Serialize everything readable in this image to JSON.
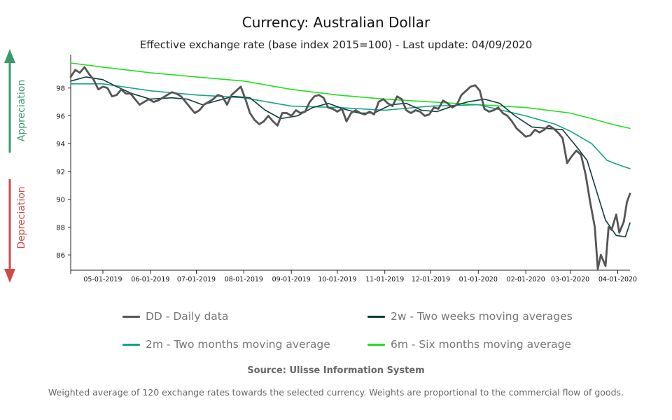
{
  "header": {
    "title": "Currency: Australian Dollar",
    "subtitle": "Effective exchange rate (base index 2015=100) - Last update: 04/09/2020"
  },
  "side": {
    "appreciation": "Appreciation",
    "depreciation": "Depreciation",
    "appreciation_color": "#3a9a6a",
    "depreciation_color": "#d04a4a"
  },
  "legend": [
    {
      "label": "DD - Daily data",
      "color": "#555555"
    },
    {
      "label": "2w - Two weeks moving averages",
      "color": "#0b3d3a"
    },
    {
      "label": "2m - Two months moving average",
      "color": "#17a38a"
    },
    {
      "label": "6m - Six months moving average",
      "color": "#22e01e"
    }
  ],
  "footer": {
    "source": "Source: Ulisse Information System",
    "note": "Weighted average of 120 exchange rates towards the selected currency. Weights are proportional to the commercial flow of goods."
  },
  "chart_data": {
    "type": "line",
    "x_ticks": [
      "05-01-2019",
      "06-01-2019",
      "07-01-2019",
      "08-01-2019",
      "09-01-2019",
      "10-01-2019",
      "11-01-2019",
      "12-01-2019",
      "01-01-2020",
      "02-01-2020",
      "03-01-2020",
      "04-01-2020"
    ],
    "y_ticks": [
      86,
      88,
      90,
      92,
      94,
      96,
      98
    ],
    "ylim": [
      84.9,
      99.9
    ],
    "xlim": [
      "2019-04-10",
      "2020-04-09"
    ],
    "series": [
      {
        "name": "DD - Daily data",
        "color": "#555555",
        "width": 2.8,
        "points": [
          [
            "2019-04-10",
            98.8
          ],
          [
            "2019-04-13",
            99.3
          ],
          [
            "2019-04-16",
            99.1
          ],
          [
            "2019-04-19",
            99.5
          ],
          [
            "2019-04-22",
            99.0
          ],
          [
            "2019-04-25",
            98.6
          ],
          [
            "2019-04-28",
            97.9
          ],
          [
            "2019-05-01",
            98.1
          ],
          [
            "2019-05-04",
            98.0
          ],
          [
            "2019-05-07",
            97.4
          ],
          [
            "2019-05-10",
            97.5
          ],
          [
            "2019-05-13",
            97.9
          ],
          [
            "2019-05-16",
            97.6
          ],
          [
            "2019-05-19",
            97.6
          ],
          [
            "2019-05-22",
            97.2
          ],
          [
            "2019-05-25",
            96.8
          ],
          [
            "2019-05-28",
            97.0
          ],
          [
            "2019-05-31",
            97.2
          ],
          [
            "2019-06-03",
            97.0
          ],
          [
            "2019-06-06",
            97.1
          ],
          [
            "2019-06-09",
            97.3
          ],
          [
            "2019-06-12",
            97.5
          ],
          [
            "2019-06-15",
            97.7
          ],
          [
            "2019-06-18",
            97.6
          ],
          [
            "2019-06-21",
            97.4
          ],
          [
            "2019-06-24",
            97.0
          ],
          [
            "2019-06-27",
            96.6
          ],
          [
            "2019-06-30",
            96.2
          ],
          [
            "2019-07-03",
            96.4
          ],
          [
            "2019-07-06",
            96.8
          ],
          [
            "2019-07-09",
            97.0
          ],
          [
            "2019-07-12",
            97.2
          ],
          [
            "2019-07-15",
            97.5
          ],
          [
            "2019-07-18",
            97.4
          ],
          [
            "2019-07-21",
            96.8
          ],
          [
            "2019-07-24",
            97.5
          ],
          [
            "2019-07-27",
            97.8
          ],
          [
            "2019-07-30",
            98.1
          ],
          [
            "2019-08-02",
            97.2
          ],
          [
            "2019-08-05",
            96.2
          ],
          [
            "2019-08-08",
            95.7
          ],
          [
            "2019-08-11",
            95.4
          ],
          [
            "2019-08-14",
            95.6
          ],
          [
            "2019-08-17",
            96.0
          ],
          [
            "2019-08-20",
            95.6
          ],
          [
            "2019-08-23",
            95.3
          ],
          [
            "2019-08-26",
            96.2
          ],
          [
            "2019-08-29",
            96.2
          ],
          [
            "2019-09-01",
            96.0
          ],
          [
            "2019-09-04",
            96.4
          ],
          [
            "2019-09-07",
            96.2
          ],
          [
            "2019-09-10",
            96.3
          ],
          [
            "2019-09-13",
            97.0
          ],
          [
            "2019-09-16",
            97.4
          ],
          [
            "2019-09-19",
            97.5
          ],
          [
            "2019-09-22",
            97.3
          ],
          [
            "2019-09-25",
            96.6
          ],
          [
            "2019-09-28",
            96.5
          ],
          [
            "2019-10-01",
            96.3
          ],
          [
            "2019-10-04",
            96.5
          ],
          [
            "2019-10-07",
            95.6
          ],
          [
            "2019-10-10",
            96.2
          ],
          [
            "2019-10-13",
            96.4
          ],
          [
            "2019-10-16",
            96.2
          ],
          [
            "2019-10-19",
            96.1
          ],
          [
            "2019-10-22",
            96.3
          ],
          [
            "2019-10-25",
            96.1
          ],
          [
            "2019-10-28",
            97.0
          ],
          [
            "2019-10-31",
            97.2
          ],
          [
            "2019-11-03",
            96.9
          ],
          [
            "2019-11-06",
            96.7
          ],
          [
            "2019-11-09",
            97.4
          ],
          [
            "2019-11-12",
            97.2
          ],
          [
            "2019-11-15",
            96.4
          ],
          [
            "2019-11-18",
            96.2
          ],
          [
            "2019-11-21",
            96.4
          ],
          [
            "2019-11-24",
            96.3
          ],
          [
            "2019-11-27",
            96.0
          ],
          [
            "2019-11-30",
            96.1
          ],
          [
            "2019-12-03",
            96.6
          ],
          [
            "2019-12-06",
            96.5
          ],
          [
            "2019-12-09",
            97.1
          ],
          [
            "2019-12-12",
            96.9
          ],
          [
            "2019-12-15",
            96.6
          ],
          [
            "2019-12-18",
            96.8
          ],
          [
            "2019-12-21",
            97.5
          ],
          [
            "2019-12-24",
            97.8
          ],
          [
            "2019-12-27",
            98.1
          ],
          [
            "2019-12-30",
            98.2
          ],
          [
            "2020-01-02",
            97.8
          ],
          [
            "2020-01-05",
            96.5
          ],
          [
            "2020-01-08",
            96.3
          ],
          [
            "2020-01-11",
            96.4
          ],
          [
            "2020-01-14",
            96.6
          ],
          [
            "2020-01-17",
            96.2
          ],
          [
            "2020-01-20",
            96.0
          ],
          [
            "2020-01-23",
            95.6
          ],
          [
            "2020-01-26",
            95.1
          ],
          [
            "2020-01-29",
            94.8
          ],
          [
            "2020-02-01",
            94.5
          ],
          [
            "2020-02-04",
            94.6
          ],
          [
            "2020-02-07",
            95.0
          ],
          [
            "2020-02-10",
            94.8
          ],
          [
            "2020-02-13",
            95.0
          ],
          [
            "2020-02-16",
            95.3
          ],
          [
            "2020-02-19",
            95.1
          ],
          [
            "2020-02-22",
            94.8
          ],
          [
            "2020-02-25",
            94.4
          ],
          [
            "2020-02-28",
            92.6
          ],
          [
            "2020-03-02",
            93.1
          ],
          [
            "2020-03-05",
            93.5
          ],
          [
            "2020-03-08",
            93.2
          ],
          [
            "2020-03-11",
            91.8
          ],
          [
            "2020-03-14",
            89.8
          ],
          [
            "2020-03-17",
            88.0
          ],
          [
            "2020-03-19",
            85.0
          ],
          [
            "2020-03-21",
            86.0
          ],
          [
            "2020-03-24",
            85.2
          ],
          [
            "2020-03-26",
            88.0
          ],
          [
            "2020-03-28",
            87.8
          ],
          [
            "2020-03-31",
            88.9
          ],
          [
            "2020-04-02",
            87.6
          ],
          [
            "2020-04-05",
            88.4
          ],
          [
            "2020-04-07",
            89.8
          ],
          [
            "2020-04-09",
            90.4
          ]
        ]
      },
      {
        "name": "2w - Two weeks moving averages",
        "color": "#0b3d3a",
        "width": 1.6,
        "points": [
          [
            "2019-04-10",
            98.5
          ],
          [
            "2019-04-20",
            98.8
          ],
          [
            "2019-05-01",
            98.6
          ],
          [
            "2019-05-10",
            98.1
          ],
          [
            "2019-05-20",
            97.6
          ],
          [
            "2019-06-01",
            97.2
          ],
          [
            "2019-06-15",
            97.3
          ],
          [
            "2019-06-25",
            97.2
          ],
          [
            "2019-07-05",
            96.8
          ],
          [
            "2019-07-15",
            97.1
          ],
          [
            "2019-07-25",
            97.4
          ],
          [
            "2019-08-05",
            97.3
          ],
          [
            "2019-08-15",
            96.4
          ],
          [
            "2019-08-25",
            95.8
          ],
          [
            "2019-09-05",
            96.0
          ],
          [
            "2019-09-15",
            96.6
          ],
          [
            "2019-09-25",
            96.9
          ],
          [
            "2019-10-05",
            96.5
          ],
          [
            "2019-10-15",
            96.2
          ],
          [
            "2019-10-25",
            96.2
          ],
          [
            "2019-11-05",
            96.8
          ],
          [
            "2019-11-15",
            96.9
          ],
          [
            "2019-11-25",
            96.4
          ],
          [
            "2019-12-05",
            96.3
          ],
          [
            "2019-12-15",
            96.7
          ],
          [
            "2019-12-25",
            97.0
          ],
          [
            "2020-01-05",
            97.2
          ],
          [
            "2020-01-15",
            96.9
          ],
          [
            "2020-01-25",
            96.0
          ],
          [
            "2020-02-05",
            95.2
          ],
          [
            "2020-02-15",
            95.1
          ],
          [
            "2020-02-25",
            95.0
          ],
          [
            "2020-03-05",
            93.8
          ],
          [
            "2020-03-12",
            92.8
          ],
          [
            "2020-03-17",
            91.0
          ],
          [
            "2020-03-24",
            88.5
          ],
          [
            "2020-03-31",
            87.4
          ],
          [
            "2020-04-06",
            87.3
          ],
          [
            "2020-04-09",
            88.3
          ]
        ]
      },
      {
        "name": "2m - Two months moving average",
        "color": "#17a38a",
        "width": 1.6,
        "points": [
          [
            "2019-04-10",
            98.3
          ],
          [
            "2019-05-01",
            98.3
          ],
          [
            "2019-06-01",
            97.8
          ],
          [
            "2019-07-01",
            97.5
          ],
          [
            "2019-08-01",
            97.3
          ],
          [
            "2019-09-01",
            96.7
          ],
          [
            "2019-10-01",
            96.6
          ],
          [
            "2019-11-01",
            96.4
          ],
          [
            "2019-12-01",
            96.7
          ],
          [
            "2020-01-01",
            96.8
          ],
          [
            "2020-02-01",
            96.0
          ],
          [
            "2020-02-20",
            95.4
          ],
          [
            "2020-03-01",
            94.9
          ],
          [
            "2020-03-15",
            94.0
          ],
          [
            "2020-03-25",
            92.8
          ],
          [
            "2020-04-01",
            92.5
          ],
          [
            "2020-04-09",
            92.2
          ]
        ]
      },
      {
        "name": "6m - Six months moving average",
        "color": "#22e01e",
        "width": 1.6,
        "points": [
          [
            "2019-04-10",
            99.8
          ],
          [
            "2019-05-01",
            99.5
          ],
          [
            "2019-06-01",
            99.1
          ],
          [
            "2019-07-01",
            98.8
          ],
          [
            "2019-08-01",
            98.5
          ],
          [
            "2019-09-01",
            97.9
          ],
          [
            "2019-10-01",
            97.5
          ],
          [
            "2019-11-01",
            97.2
          ],
          [
            "2019-12-01",
            97.0
          ],
          [
            "2020-01-01",
            96.8
          ],
          [
            "2020-02-01",
            96.6
          ],
          [
            "2020-03-01",
            96.2
          ],
          [
            "2020-03-15",
            95.8
          ],
          [
            "2020-03-28",
            95.4
          ],
          [
            "2020-04-09",
            95.1
          ]
        ]
      }
    ]
  }
}
